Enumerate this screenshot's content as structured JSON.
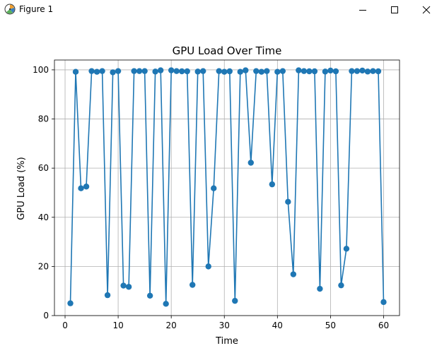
{
  "window": {
    "title": "Figure 1",
    "app_icon": "matplotlib-figure-icon",
    "controls": [
      "minimize-icon",
      "maximize-icon",
      "close-icon"
    ]
  },
  "colors": {
    "series": "#1f77b4",
    "grid": "#b0b0b0",
    "axes": "#000000"
  },
  "chart_data": {
    "type": "line",
    "title": "GPU Load Over Time",
    "xlabel": "Time",
    "ylabel": "GPU Load (%)",
    "xlim": [
      -2,
      63
    ],
    "ylim": [
      0,
      104
    ],
    "xticks": [
      0,
      10,
      20,
      30,
      40,
      50,
      60
    ],
    "yticks": [
      0,
      20,
      40,
      60,
      80,
      100
    ],
    "grid": true,
    "marker": "circle",
    "series": [
      {
        "name": "GPU Load",
        "x": [
          1,
          2,
          3,
          4,
          5,
          6,
          7,
          8,
          9,
          10,
          11,
          12,
          13,
          14,
          15,
          16,
          17,
          18,
          19,
          20,
          21,
          22,
          23,
          24,
          25,
          26,
          27,
          28,
          29,
          30,
          31,
          32,
          33,
          34,
          35,
          36,
          37,
          38,
          39,
          40,
          41,
          42,
          43,
          44,
          45,
          46,
          47,
          48,
          49,
          50,
          51,
          52,
          53,
          54,
          55,
          56,
          57,
          58,
          59,
          60
        ],
        "values": [
          5,
          99.2,
          51.8,
          52.5,
          99.5,
          99.2,
          99.5,
          8.3,
          99,
          99.5,
          12.2,
          11.7,
          99.5,
          99.5,
          99.5,
          8.1,
          99.3,
          99.8,
          4.8,
          99.8,
          99.5,
          99.4,
          99.4,
          12.5,
          99.3,
          99.5,
          20,
          51.8,
          99.5,
          99.2,
          99.4,
          6,
          99.2,
          99.8,
          62.2,
          99.5,
          99.2,
          99.5,
          53.4,
          99.2,
          99.5,
          46.3,
          16.8,
          99.8,
          99.5,
          99.4,
          99.4,
          10.9,
          99.3,
          99.7,
          99.4,
          12.3,
          27.2,
          99.5,
          99.5,
          99.7,
          99.3,
          99.5,
          99.4,
          5.5
        ]
      }
    ]
  }
}
